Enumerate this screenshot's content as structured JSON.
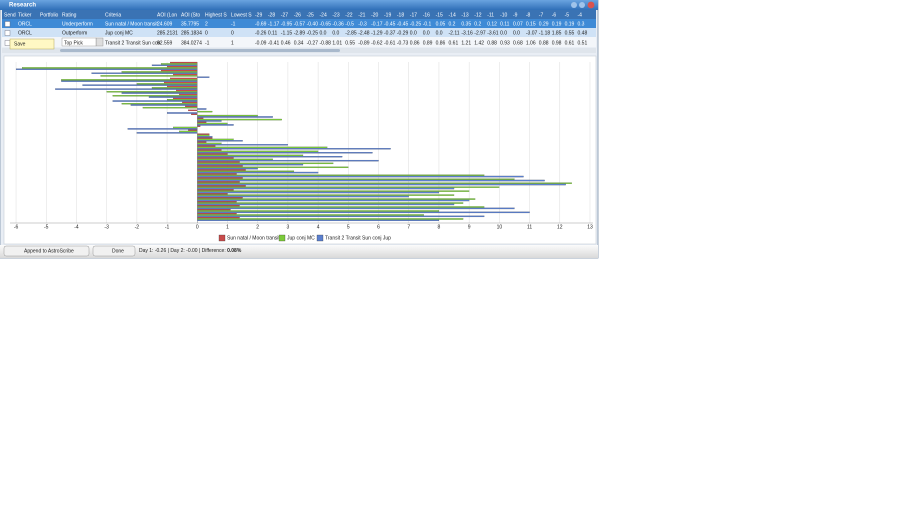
{
  "window": {
    "title": "Research"
  },
  "table": {
    "columns": [
      "Send",
      "Ticker",
      "Portfolio",
      "Rating",
      "Criteria",
      "AOI (Lon",
      "AOI (Sto",
      "Highest S",
      "Lowest S",
      "-29",
      "-28",
      "-27",
      "-26",
      "-25",
      "-24",
      "-23",
      "-22",
      "-21",
      "-20",
      "-19",
      "-18",
      "-17",
      "-16",
      "-15",
      "-14",
      "-13",
      "-12",
      "-11",
      "-10",
      "-9",
      "-8",
      "-7",
      "-6",
      "-5",
      "-4"
    ],
    "rows": [
      {
        "ticker": "ORCL",
        "rating": "Underperform",
        "criteria": "Sun natal / Moon transit",
        "aoi_lon": "24.609",
        "aoi_sto": "35.7795",
        "highest": "2",
        "lowest": "-1",
        "days": [
          "-0.69",
          "-1.17",
          "-0.95",
          "-0.57",
          "-0.40",
          "-0.65",
          "-0.36",
          "-0.5",
          "-0.3",
          "-0.17",
          "-0.45",
          "-0.45",
          "-0.25",
          "-0.1",
          "0.05",
          "0.2",
          "0.35",
          "0.2",
          "0.12",
          "0.11",
          "0.07",
          "0.15",
          "0.29",
          "0.19",
          "0.19",
          "0.3"
        ]
      },
      {
        "ticker": "ORCL",
        "rating": "Outperform",
        "criteria": "Jup conj MC",
        "aoi_lon": "285.2131",
        "aoi_sto": "285.1834",
        "highest": "0",
        "lowest": "0",
        "days": [
          "-0.26",
          "0.11",
          "-1.15",
          "-2.89",
          "-0.25",
          "0.0",
          "0.0",
          "-2.85",
          "-2.48",
          "-1.29",
          "-0.37",
          "-0.29",
          "0.0",
          "0.0",
          "0.0",
          "-2.11",
          "-3.16",
          "-2.97",
          "-3.61",
          "0.0",
          "0.0",
          "-3.07",
          "-1.18",
          "1.85",
          "0.55",
          "0.48"
        ]
      },
      {
        "rating": "Top Pick",
        "criteria": "Transit 2 Transit Sun con",
        "aoi_lon": "82.559",
        "aoi_sto": "384.0274",
        "highest": "-1",
        "lowest": "1",
        "days": [
          "-0.09",
          "-0.41",
          "0.46",
          "0.34",
          "-0.27",
          "-0.88",
          "1.01",
          "0.55",
          "-0.89",
          "-0.62",
          "-0.61",
          "-0.73",
          "0.86",
          "0.89",
          "0.86",
          "0.61",
          "1.21",
          "1.42",
          "0.88",
          "0.93",
          "0.68",
          "1.06",
          "0.88",
          "0.98",
          "0.61",
          "0.51"
        ]
      }
    ]
  },
  "popup": {
    "label": "Save"
  },
  "chart_data": {
    "type": "hbar",
    "xlim": [
      -6.2,
      13.1
    ],
    "xticks": [
      -6,
      -5,
      -4,
      -3,
      -2,
      -1,
      0,
      1,
      2,
      3,
      4,
      5,
      6,
      7,
      8,
      9,
      10,
      11,
      12,
      13
    ],
    "grid": true,
    "legend": "bottom",
    "series": [
      {
        "name": "Sun natal / Moon transit",
        "color": "#c84b4b",
        "values": [
          -0.9,
          -1.0,
          -1.2,
          -0.8,
          -0.9,
          -1.1,
          -1.0,
          -0.7,
          -0.6,
          -0.8,
          -0.5,
          -0.4,
          -0.3,
          -0.2,
          0.2,
          0.3,
          0.1,
          -0.3,
          0.4,
          0.5,
          0.3,
          0.6,
          0.8,
          1.0,
          1.2,
          1.4,
          1.5,
          1.6,
          1.3,
          1.5,
          1.4,
          1.6,
          1.2,
          1.0,
          1.5,
          1.3,
          1.4,
          1.1,
          1.3,
          1.4
        ]
      },
      {
        "name": "Jup conj MC",
        "color": "#7ccb3a",
        "values": [
          -1.2,
          -5.8,
          -2.5,
          -3.2,
          -4.5,
          -2.0,
          -1.5,
          -3.0,
          -2.8,
          -1.0,
          -2.5,
          -1.8,
          0.5,
          2.0,
          2.8,
          1.0,
          -0.8,
          -0.6,
          0.4,
          1.2,
          0.8,
          4.3,
          4.0,
          3.5,
          2.5,
          4.5,
          5.0,
          3.2,
          9.5,
          10.5,
          12.4,
          10.0,
          9.0,
          8.5,
          9.2,
          8.8,
          9.5,
          8.0,
          7.5,
          8.8
        ]
      },
      {
        "name": "Transit 2 Transit Sun conj Jup",
        "color": "#5b7fcf",
        "values": [
          -1.5,
          -6.0,
          -3.5,
          0.4,
          -4.5,
          -3.8,
          -4.7,
          -2.5,
          -1.6,
          -2.8,
          -2.2,
          0.3,
          -1.0,
          2.5,
          0.8,
          1.2,
          -2.3,
          -2.0,
          0.5,
          1.5,
          3.0,
          6.4,
          5.8,
          4.8,
          6.0,
          3.5,
          2.0,
          4.0,
          10.8,
          11.5,
          12.2,
          8.5,
          8.0,
          7.0,
          9.0,
          8.5,
          10.5,
          11.0,
          9.5,
          8.0
        ]
      }
    ]
  },
  "buttons": [
    "Append to AstroScribe",
    "Done"
  ],
  "status": {
    "text": "Day 1: -0.26 | Day 2: -0.00 | Difference: ",
    "difference": "0.08%"
  }
}
